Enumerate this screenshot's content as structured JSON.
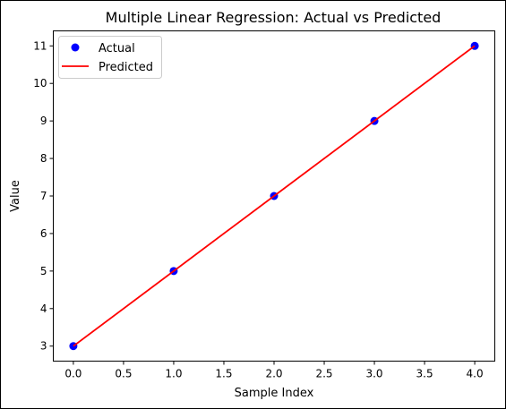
{
  "chart_data": {
    "type": "scatter",
    "title": "Multiple Linear Regression: Actual vs Predicted",
    "xlabel": "Sample Index",
    "ylabel": "Value",
    "xlim": [
      -0.2,
      4.2
    ],
    "ylim": [
      2.6,
      11.4
    ],
    "xticks": [
      0.0,
      0.5,
      1.0,
      1.5,
      2.0,
      2.5,
      3.0,
      3.5,
      4.0
    ],
    "xtick_labels": [
      "0.0",
      "0.5",
      "1.0",
      "1.5",
      "2.0",
      "2.5",
      "3.0",
      "3.5",
      "4.0"
    ],
    "yticks": [
      3,
      4,
      5,
      6,
      7,
      8,
      9,
      10,
      11
    ],
    "ytick_labels": [
      "3",
      "4",
      "5",
      "6",
      "7",
      "8",
      "9",
      "10",
      "11"
    ],
    "grid": false,
    "legend_position": "top-left",
    "series": [
      {
        "name": "Actual",
        "kind": "scatter",
        "color": "#0000ff",
        "x": [
          0,
          1,
          2,
          3,
          4
        ],
        "y": [
          3,
          5,
          7,
          9,
          11
        ]
      },
      {
        "name": "Predicted",
        "kind": "line",
        "color": "#ff0000",
        "x": [
          0,
          1,
          2,
          3,
          4
        ],
        "y": [
          3,
          5,
          7,
          9,
          11
        ]
      }
    ]
  }
}
